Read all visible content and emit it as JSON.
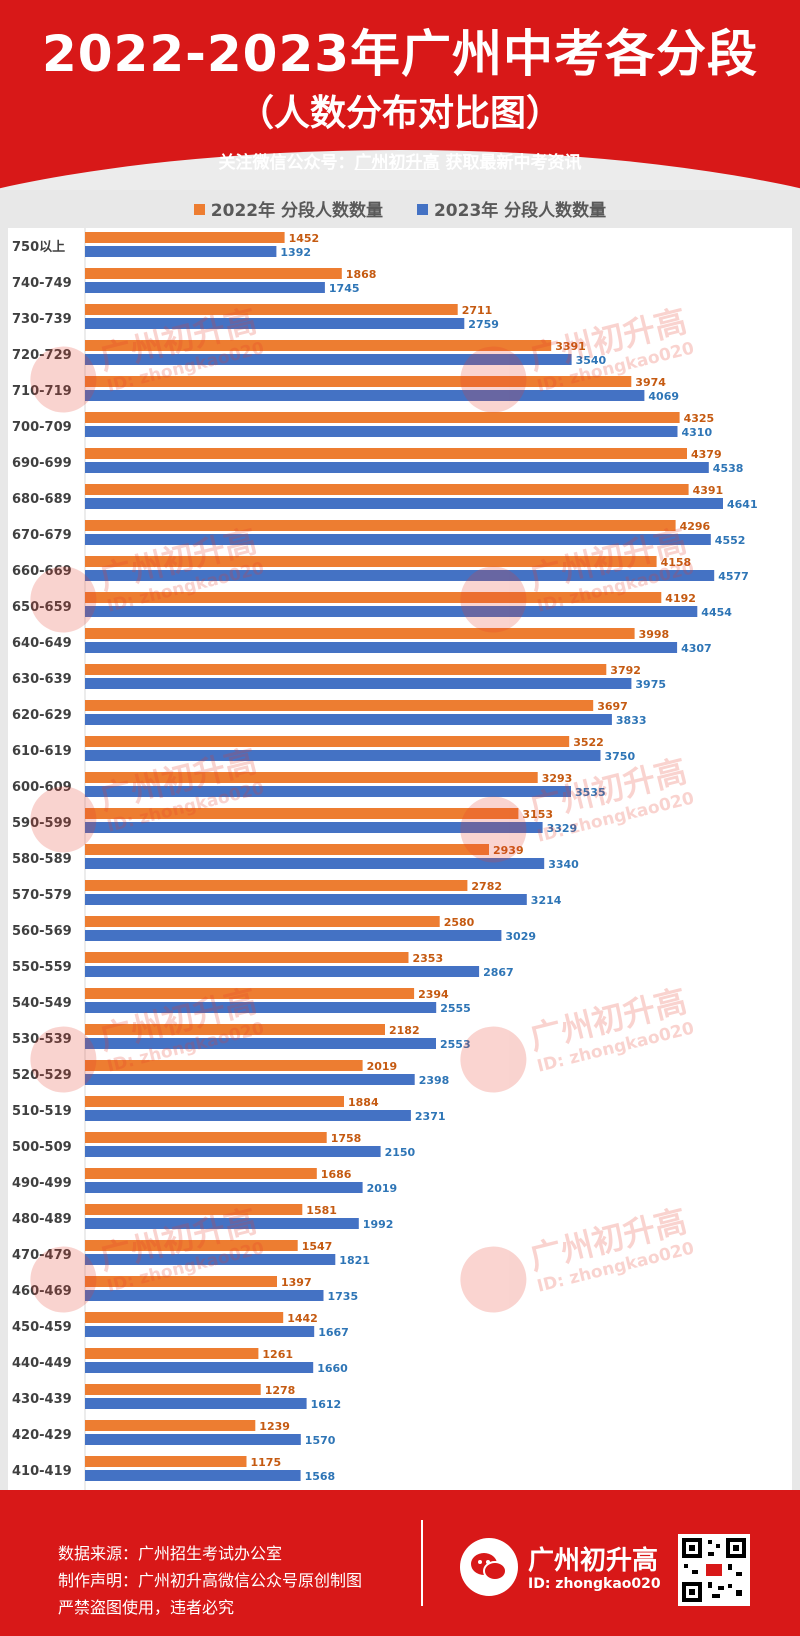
{
  "header": {
    "title": "2022-2023年广州中考各分段",
    "subtitle": "（人数分布对比图）",
    "follow_prefix": "关注微信公众号：",
    "follow_account": "广州初升高",
    "follow_suffix": " 获取最新中考资讯"
  },
  "colors": {
    "brand_red": "#d81818",
    "series_2022": "#ed7d31",
    "series_2023": "#4472c4",
    "label_2022": "#c55a11",
    "label_2023": "#2e75b6"
  },
  "watermark": {
    "name": "广州初升高",
    "id": "ID: zhongkao020",
    "icon": "wechat-icon"
  },
  "chart_data": {
    "type": "bar",
    "orientation": "horizontal",
    "legend_position": "top",
    "grid": false,
    "categories": [
      "750以上",
      "740-749",
      "730-739",
      "720-729",
      "710-719",
      "700-709",
      "690-699",
      "680-689",
      "670-679",
      "660-669",
      "650-659",
      "640-649",
      "630-639",
      "620-629",
      "610-619",
      "600-609",
      "590-599",
      "580-589",
      "570-579",
      "560-569",
      "550-559",
      "540-549",
      "530-539",
      "520-529",
      "510-519",
      "500-509",
      "490-499",
      "480-489",
      "470-479",
      "460-469",
      "450-459",
      "440-449",
      "430-439",
      "420-429",
      "410-419"
    ],
    "series": [
      {
        "name": "2022年 分段人数数量",
        "values": [
          1452,
          1868,
          2711,
          3391,
          3974,
          4325,
          4379,
          4391,
          4296,
          4158,
          4192,
          3998,
          3792,
          3697,
          3522,
          3293,
          3153,
          2939,
          2782,
          2580,
          2353,
          2394,
          2182,
          2019,
          1884,
          1758,
          1686,
          1581,
          1547,
          1397,
          1442,
          1261,
          1278,
          1239,
          1175
        ]
      },
      {
        "name": "2023年 分段人数数量",
        "values": [
          1392,
          1745,
          2759,
          3540,
          4069,
          4310,
          4538,
          4641,
          4552,
          4577,
          4454,
          4307,
          3975,
          3833,
          3750,
          3535,
          3329,
          3340,
          3214,
          3029,
          2867,
          2555,
          2553,
          2398,
          2371,
          2150,
          2019,
          1992,
          1821,
          1735,
          1667,
          1660,
          1612,
          1570,
          1568
        ]
      }
    ]
  },
  "footer": {
    "source": "数据来源：广州招生考试办公室",
    "statement": "制作声明：广州初升高微信公众号原创制图",
    "warning": "严禁盗图使用，违者必究",
    "logo_name": "广州初升高",
    "logo_id": "ID: zhongkao020"
  }
}
